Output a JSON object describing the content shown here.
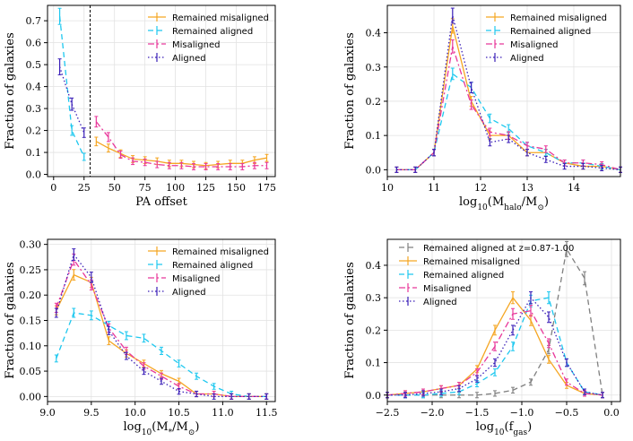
{
  "colors": {
    "remained_misaligned": "#f5a623",
    "remained_aligned": "#1ec8ef",
    "misaligned": "#e8379a",
    "aligned": "#3a1fb8",
    "remained_aligned_late": "#808080",
    "grid": "#e2e2e2",
    "offset_line": "#000000"
  },
  "chart_data": [
    {
      "type": "line",
      "xlabel": "PA offset",
      "ylabel": "Fraction of galaxies",
      "xlim": [
        -5,
        182
      ],
      "ylim": [
        -0.01,
        0.77
      ],
      "xticks": [
        0,
        25,
        50,
        75,
        100,
        125,
        150,
        175
      ],
      "yticks": [
        0.0,
        0.1,
        0.2,
        0.3,
        0.4,
        0.5,
        0.6,
        0.7
      ],
      "ytick_labels": [
        "0.0",
        "0.1",
        "0.2",
        "0.3",
        "0.4",
        "0.5",
        "0.6",
        "0.7"
      ],
      "grid": true,
      "legend_position": "upper right",
      "vertical_line_at": 30,
      "series": [
        {
          "name": "Remained misaligned",
          "color_key": "remained_misaligned",
          "style": "solid",
          "x": [
            35,
            45,
            55,
            65,
            75,
            85,
            95,
            105,
            115,
            125,
            135,
            145,
            155,
            165,
            175
          ],
          "y": [
            0.15,
            0.12,
            0.095,
            0.07,
            0.065,
            0.06,
            0.05,
            0.05,
            0.045,
            0.04,
            0.045,
            0.05,
            0.05,
            0.065,
            0.075
          ]
        },
        {
          "name": "Remained aligned",
          "color_key": "remained_aligned",
          "style": "dashed",
          "x": [
            5,
            15,
            25
          ],
          "y": [
            0.72,
            0.2,
            0.08
          ]
        },
        {
          "name": "Misaligned",
          "color_key": "misaligned",
          "style": "dashdot",
          "x": [
            35,
            45,
            55,
            65,
            75,
            85,
            95,
            105,
            115,
            125,
            135,
            145,
            155,
            165,
            175
          ],
          "y": [
            0.24,
            0.17,
            0.09,
            0.06,
            0.055,
            0.045,
            0.04,
            0.04,
            0.035,
            0.035,
            0.035,
            0.035,
            0.035,
            0.04,
            0.04
          ]
        },
        {
          "name": "Aligned",
          "color_key": "aligned",
          "style": "dotted",
          "x": [
            5,
            15,
            25
          ],
          "y": [
            0.49,
            0.32,
            0.19
          ]
        }
      ]
    },
    {
      "type": "line",
      "xlabel": "log10(Mhalo/M⊙)",
      "ylabel": "Fraction of galaxies",
      "xlim": [
        10,
        15
      ],
      "ylim": [
        -0.02,
        0.48
      ],
      "xticks": [
        10,
        11,
        12,
        13,
        14
      ],
      "yticks": [
        0.0,
        0.1,
        0.2,
        0.3,
        0.4
      ],
      "ytick_labels": [
        "0.0",
        "0.1",
        "0.2",
        "0.3",
        "0.4"
      ],
      "grid": true,
      "legend_position": "upper right",
      "series": [
        {
          "name": "Remained misaligned",
          "color_key": "remained_misaligned",
          "style": "solid",
          "x": [
            10.2,
            10.6,
            11.0,
            11.4,
            11.8,
            12.2,
            12.6,
            13.0,
            13.4,
            13.8,
            14.2,
            14.6,
            15.0
          ],
          "y": [
            0.0,
            0.0,
            0.05,
            0.42,
            0.2,
            0.1,
            0.1,
            0.05,
            0.05,
            0.02,
            0.01,
            0.01,
            0.0
          ]
        },
        {
          "name": "Remained aligned",
          "color_key": "remained_aligned",
          "style": "dashed",
          "x": [
            10.2,
            10.6,
            11.0,
            11.4,
            11.8,
            12.2,
            12.6,
            13.0,
            13.4,
            13.8,
            14.2,
            14.6,
            15.0
          ],
          "y": [
            0.0,
            0.0,
            0.05,
            0.28,
            0.24,
            0.15,
            0.12,
            0.07,
            0.05,
            0.02,
            0.02,
            0.01,
            0.0
          ]
        },
        {
          "name": "Misaligned",
          "color_key": "misaligned",
          "style": "dashdot",
          "x": [
            10.2,
            10.6,
            11.0,
            11.4,
            11.8,
            12.2,
            12.6,
            13.0,
            13.4,
            13.8,
            14.2,
            14.6,
            15.0
          ],
          "y": [
            0.0,
            0.0,
            0.05,
            0.36,
            0.19,
            0.11,
            0.1,
            0.07,
            0.06,
            0.02,
            0.02,
            0.015,
            0.0
          ]
        },
        {
          "name": "Aligned",
          "color_key": "aligned",
          "style": "dotted",
          "x": [
            10.2,
            10.6,
            11.0,
            11.4,
            11.8,
            12.2,
            12.6,
            13.0,
            13.4,
            13.8,
            14.2,
            14.6,
            15.0
          ],
          "y": [
            0.0,
            0.0,
            0.05,
            0.45,
            0.24,
            0.08,
            0.09,
            0.05,
            0.03,
            0.01,
            0.01,
            0.005,
            0.0
          ]
        }
      ]
    },
    {
      "type": "line",
      "xlabel": "log10(M*/M⊙)",
      "ylabel": "Fraction of galaxies",
      "xlim": [
        9.0,
        11.6
      ],
      "ylim": [
        -0.01,
        0.31
      ],
      "xticks": [
        9.0,
        9.5,
        10.0,
        10.5,
        11.0,
        11.5
      ],
      "xtick_labels": [
        "9.0",
        "9.5",
        "10.0",
        "10.5",
        "11.0",
        "11.5"
      ],
      "yticks": [
        0.0,
        0.05,
        0.1,
        0.15,
        0.2,
        0.25,
        0.3
      ],
      "ytick_labels": [
        "0.00",
        "0.05",
        "0.10",
        "0.15",
        "0.20",
        "0.25",
        "0.30"
      ],
      "grid": true,
      "legend_position": "upper right",
      "series": [
        {
          "name": "Remained misaligned",
          "color_key": "remained_misaligned",
          "style": "solid",
          "x": [
            9.1,
            9.3,
            9.5,
            9.7,
            9.9,
            10.1,
            10.3,
            10.5,
            10.7,
            10.9,
            11.1,
            11.3,
            11.5
          ],
          "y": [
            0.17,
            0.24,
            0.225,
            0.11,
            0.085,
            0.065,
            0.045,
            0.03,
            0.005,
            0.005,
            0.0,
            0.0,
            0.0
          ]
        },
        {
          "name": "Remained aligned",
          "color_key": "remained_aligned",
          "style": "dashed",
          "x": [
            9.1,
            9.3,
            9.5,
            9.7,
            9.9,
            10.1,
            10.3,
            10.5,
            10.7,
            10.9,
            11.1,
            11.3,
            11.5
          ],
          "y": [
            0.075,
            0.165,
            0.16,
            0.14,
            0.12,
            0.115,
            0.09,
            0.065,
            0.04,
            0.02,
            0.005,
            0.0,
            0.0
          ]
        },
        {
          "name": "Misaligned",
          "color_key": "misaligned",
          "style": "dashdot",
          "x": [
            9.1,
            9.3,
            9.5,
            9.7,
            9.9,
            10.1,
            10.3,
            10.5,
            10.7,
            10.9,
            11.1,
            11.3,
            11.5
          ],
          "y": [
            0.175,
            0.27,
            0.22,
            0.135,
            0.09,
            0.06,
            0.04,
            0.02,
            0.005,
            0.005,
            0.0,
            0.0,
            0.0
          ]
        },
        {
          "name": "Aligned",
          "color_key": "aligned",
          "style": "dotted",
          "x": [
            9.1,
            9.3,
            9.5,
            9.7,
            9.9,
            10.1,
            10.3,
            10.5,
            10.7,
            10.9,
            11.1,
            11.3,
            11.5
          ],
          "y": [
            0.165,
            0.28,
            0.235,
            0.13,
            0.08,
            0.05,
            0.03,
            0.01,
            0.005,
            0.0,
            0.0,
            0.0,
            0.0
          ]
        }
      ]
    },
    {
      "type": "line",
      "xlabel": "log10(fgas)",
      "ylabel": "Fraction of galaxies",
      "xlim": [
        -2.5,
        0.1
      ],
      "ylim": [
        -0.02,
        0.48
      ],
      "xticks": [
        -2.5,
        -2.0,
        -1.5,
        -1.0,
        -0.5,
        0.0
      ],
      "xtick_labels": [
        "−2.5",
        "−2.0",
        "−1.5",
        "−1.0",
        "−0.5",
        "0.0"
      ],
      "yticks": [
        0.0,
        0.1,
        0.2,
        0.3,
        0.4
      ],
      "ytick_labels": [
        "0.0",
        "0.1",
        "0.2",
        "0.3",
        "0.4"
      ],
      "grid": true,
      "legend_position": "upper left",
      "series": [
        {
          "name": "Remained aligned at z=0.87-1.00",
          "color_key": "remained_aligned_late",
          "style": "dashed",
          "x": [
            -2.5,
            -2.3,
            -2.1,
            -1.9,
            -1.7,
            -1.5,
            -1.3,
            -1.1,
            -0.9,
            -0.7,
            -0.5,
            -0.3,
            -0.1
          ],
          "y": [
            0.0,
            0.0,
            0.0,
            0.0,
            0.0,
            0.0,
            0.005,
            0.015,
            0.04,
            0.14,
            0.45,
            0.36,
            0.0
          ]
        },
        {
          "name": "Remained misaligned",
          "color_key": "remained_misaligned",
          "style": "solid",
          "x": [
            -2.5,
            -2.3,
            -2.1,
            -1.9,
            -1.7,
            -1.5,
            -1.3,
            -1.1,
            -0.9,
            -0.7,
            -0.5,
            -0.3,
            -0.1
          ],
          "y": [
            0.0,
            0.005,
            0.01,
            0.02,
            0.03,
            0.08,
            0.2,
            0.3,
            0.23,
            0.11,
            0.03,
            0.005,
            0.0
          ]
        },
        {
          "name": "Remained aligned",
          "color_key": "remained_aligned",
          "style": "dashed",
          "x": [
            -2.5,
            -2.3,
            -2.1,
            -1.9,
            -1.7,
            -1.5,
            -1.3,
            -1.1,
            -0.9,
            -0.7,
            -0.5,
            -0.3,
            -0.1
          ],
          "y": [
            0.0,
            0.0,
            0.0,
            0.005,
            0.01,
            0.035,
            0.07,
            0.15,
            0.29,
            0.3,
            0.1,
            0.01,
            0.0
          ]
        },
        {
          "name": "Misaligned",
          "color_key": "misaligned",
          "style": "dashdot",
          "x": [
            -2.5,
            -2.3,
            -2.1,
            -1.9,
            -1.7,
            -1.5,
            -1.3,
            -1.1,
            -0.9,
            -0.7,
            -0.5,
            -0.3,
            -0.1
          ],
          "y": [
            0.0,
            0.005,
            0.01,
            0.02,
            0.03,
            0.07,
            0.15,
            0.25,
            0.26,
            0.16,
            0.04,
            0.005,
            0.0
          ]
        },
        {
          "name": "Aligned",
          "color_key": "aligned",
          "style": "dotted",
          "x": [
            -2.5,
            -2.3,
            -2.1,
            -1.9,
            -1.7,
            -1.5,
            -1.3,
            -1.1,
            -0.9,
            -0.7,
            -0.5,
            -0.3,
            -0.1
          ],
          "y": [
            0.0,
            0.0,
            0.005,
            0.01,
            0.02,
            0.05,
            0.1,
            0.2,
            0.3,
            0.24,
            0.1,
            0.01,
            0.0
          ]
        }
      ]
    }
  ]
}
